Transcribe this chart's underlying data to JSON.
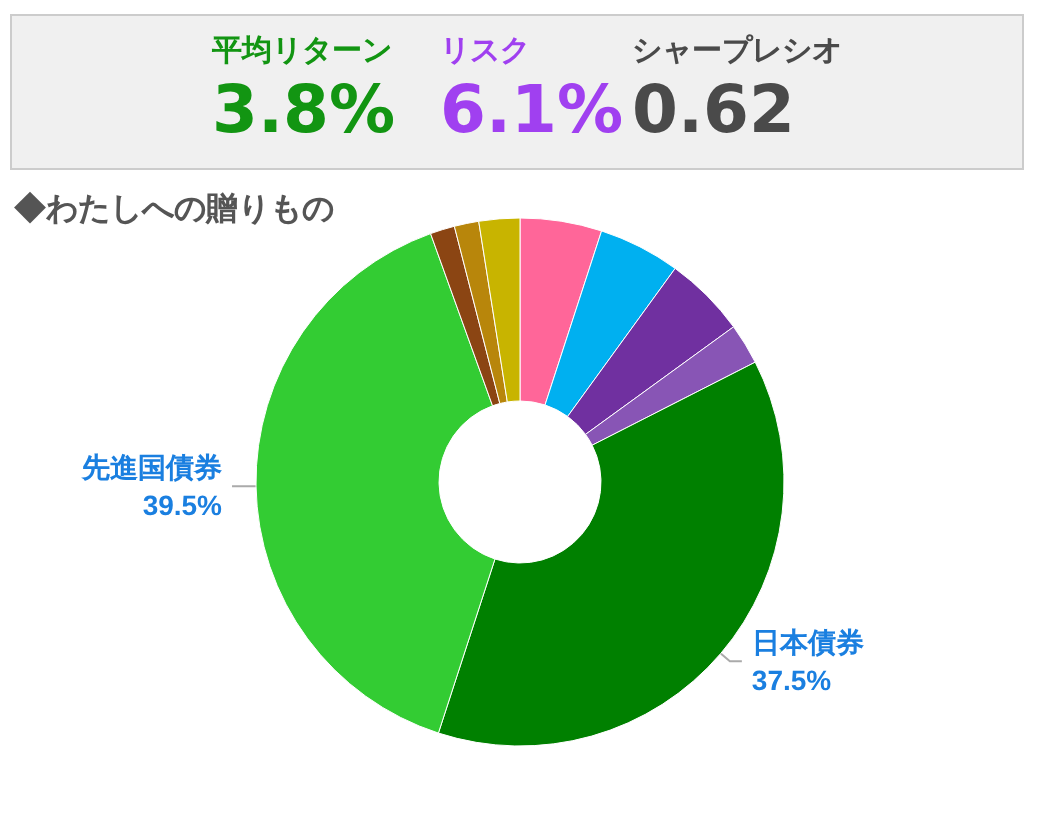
{
  "chart_data": [
    {
      "type": "other",
      "annotations": [
        "平均リターン",
        "3.8%",
        "リスク",
        "6.1%",
        "シャープレシオ",
        "0.62"
      ]
    },
    {
      "type": "donut",
      "title": "◆わたしへの贈りもの",
      "categories": [
        null,
        null,
        null,
        null,
        "日本債券",
        "先進国債券",
        null,
        null,
        null
      ],
      "values": [
        5,
        5,
        5,
        2.5,
        37.5,
        39.5,
        1.5,
        1.5,
        2.5
      ],
      "value_labels": [
        null,
        null,
        null,
        null,
        "37.5%",
        "39.5%",
        null,
        null,
        null
      ],
      "colors": [
        "#ff6699",
        "#00b0f0",
        "#7030a0",
        "#8855b5",
        "#008000",
        "#33cc33",
        "#8b4513",
        "#b8860b",
        "#c8b400"
      ],
      "legend": false
    }
  ]
}
